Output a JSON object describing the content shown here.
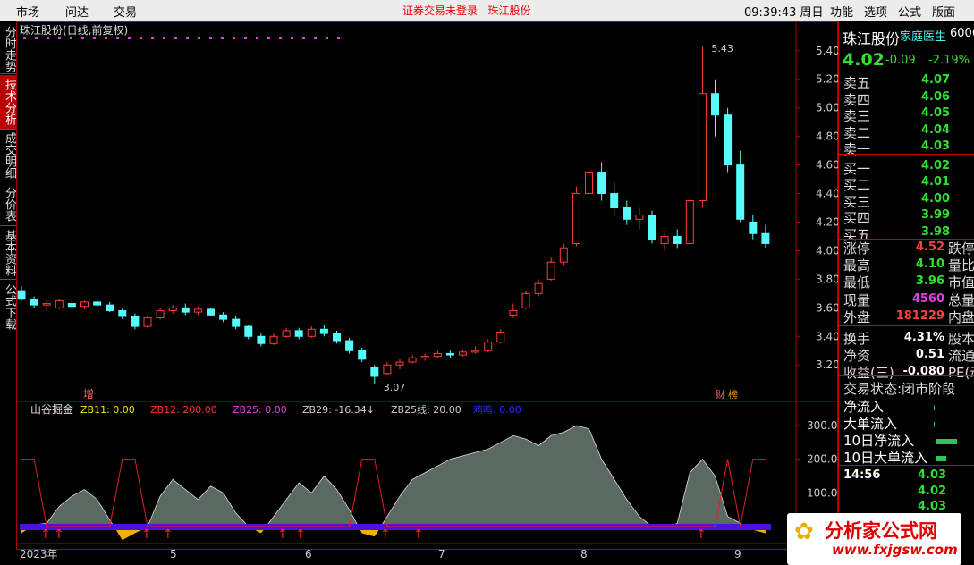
{
  "menu": {
    "left": [
      "市场",
      "问达",
      "交易"
    ],
    "center": "证券交易未登录   珠江股份",
    "clock": "09:39:43 周日",
    "right": [
      "功能",
      "选项",
      "公式",
      "版面"
    ]
  },
  "tabs": [
    "分时走势",
    "技术分析",
    "成交明细",
    "分价表",
    "基本资料",
    "公式下载"
  ],
  "price_chart": {
    "title": "珠江股份(日线,前复权)",
    "ylim": [
      3.07,
      5.43
    ],
    "yticks": [
      {
        "value": 3.2,
        "label": "3.20"
      },
      {
        "value": 3.4,
        "label": "3.40"
      },
      {
        "value": 3.6,
        "label": "3.60"
      },
      {
        "value": 3.8,
        "label": "3.80"
      },
      {
        "value": 4,
        "label": "4.00"
      },
      {
        "value": 4.2,
        "label": "4.20"
      },
      {
        "value": 4.4,
        "label": "4.40"
      },
      {
        "value": 4.6,
        "label": "4.60"
      },
      {
        "value": 4.8,
        "label": "4.80"
      },
      {
        "value": 5,
        "label": "5.00"
      },
      {
        "value": 5.2,
        "label": "5.20"
      },
      {
        "value": 5.4,
        "label": "5.40"
      }
    ],
    "candles": [
      [
        3.72,
        3.75,
        3.65,
        3.66
      ],
      [
        3.66,
        3.68,
        3.6,
        3.62
      ],
      [
        3.62,
        3.66,
        3.58,
        3.63
      ],
      [
        3.6,
        3.66,
        3.59,
        3.65
      ],
      [
        3.63,
        3.66,
        3.6,
        3.61
      ],
      [
        3.61,
        3.65,
        3.59,
        3.64
      ],
      [
        3.64,
        3.67,
        3.61,
        3.62
      ],
      [
        3.62,
        3.64,
        3.57,
        3.58
      ],
      [
        3.58,
        3.6,
        3.52,
        3.54
      ],
      [
        3.54,
        3.56,
        3.45,
        3.47
      ],
      [
        3.47,
        3.55,
        3.46,
        3.53
      ],
      [
        3.53,
        3.6,
        3.52,
        3.58
      ],
      [
        3.58,
        3.62,
        3.56,
        3.6
      ],
      [
        3.6,
        3.63,
        3.55,
        3.57
      ],
      [
        3.57,
        3.61,
        3.55,
        3.59
      ],
      [
        3.59,
        3.6,
        3.54,
        3.55
      ],
      [
        3.55,
        3.57,
        3.5,
        3.52
      ],
      [
        3.52,
        3.54,
        3.45,
        3.47
      ],
      [
        3.47,
        3.48,
        3.38,
        3.4
      ],
      [
        3.4,
        3.42,
        3.33,
        3.35
      ],
      [
        3.35,
        3.42,
        3.34,
        3.4
      ],
      [
        3.4,
        3.46,
        3.39,
        3.44
      ],
      [
        3.44,
        3.46,
        3.38,
        3.4
      ],
      [
        3.4,
        3.47,
        3.39,
        3.45
      ],
      [
        3.45,
        3.48,
        3.4,
        3.42
      ],
      [
        3.42,
        3.44,
        3.35,
        3.37
      ],
      [
        3.37,
        3.39,
        3.28,
        3.3
      ],
      [
        3.3,
        3.32,
        3.22,
        3.24
      ],
      [
        3.18,
        3.2,
        3.07,
        3.12
      ],
      [
        3.14,
        3.22,
        3.13,
        3.2
      ],
      [
        3.2,
        3.24,
        3.17,
        3.22
      ],
      [
        3.22,
        3.27,
        3.21,
        3.25
      ],
      [
        3.25,
        3.28,
        3.23,
        3.26
      ],
      [
        3.26,
        3.3,
        3.25,
        3.28
      ],
      [
        3.28,
        3.3,
        3.25,
        3.27
      ],
      [
        3.27,
        3.31,
        3.26,
        3.29
      ],
      [
        3.29,
        3.33,
        3.28,
        3.3
      ],
      [
        3.3,
        3.38,
        3.29,
        3.36
      ],
      [
        3.36,
        3.45,
        3.35,
        3.43
      ],
      [
        3.55,
        3.63,
        3.53,
        3.58
      ],
      [
        3.6,
        3.72,
        3.59,
        3.7
      ],
      [
        3.7,
        3.8,
        3.68,
        3.77
      ],
      [
        3.8,
        3.95,
        3.79,
        3.92
      ],
      [
        3.92,
        4.05,
        3.9,
        4.02
      ],
      [
        4.05,
        4.45,
        4.03,
        4.4
      ],
      [
        4.4,
        4.8,
        4.35,
        4.55
      ],
      [
        4.55,
        4.62,
        4.35,
        4.4
      ],
      [
        4.4,
        4.48,
        4.25,
        4.3
      ],
      [
        4.3,
        4.35,
        4.18,
        4.22
      ],
      [
        4.22,
        4.3,
        4.15,
        4.25
      ],
      [
        4.25,
        4.28,
        4.05,
        4.08
      ],
      [
        4.05,
        4.12,
        4,
        4.1
      ],
      [
        4.1,
        4.15,
        4.02,
        4.05
      ],
      [
        4.05,
        4.38,
        4.04,
        4.35
      ],
      [
        4.35,
        5.43,
        4.3,
        5.1
      ],
      [
        5.1,
        5.2,
        4.8,
        4.95
      ],
      [
        4.95,
        5,
        4.55,
        4.6
      ],
      [
        4.6,
        4.7,
        4.2,
        4.22
      ],
      [
        4.2,
        4.25,
        4.08,
        4.12
      ],
      [
        4.12,
        4.18,
        4.02,
        4.05
      ]
    ],
    "markers": [
      "增",
      "财",
      "榜"
    ]
  },
  "indicator": {
    "title": "山谷掘金",
    "legend": [
      "ZB11: 0.00",
      "ZB12: 200.00",
      "ZB25: 0.00",
      "ZB29: -16.34↓",
      "ZB25线: 20.00",
      "鸡鸣: 0.00"
    ],
    "ylim": [
      -40,
      320
    ],
    "yticks": [
      {
        "value": 100,
        "label": "100.0"
      },
      {
        "value": 200,
        "label": "200.0"
      },
      {
        "value": 300,
        "label": "300.0"
      }
    ],
    "area": [
      -20,
      5,
      10,
      60,
      90,
      110,
      80,
      20,
      -40,
      -20,
      0,
      90,
      140,
      110,
      80,
      120,
      100,
      40,
      0,
      -20,
      30,
      80,
      130,
      100,
      150,
      110,
      50,
      -20,
      -30,
      30,
      90,
      140,
      160,
      180,
      200,
      210,
      220,
      230,
      250,
      270,
      260,
      240,
      270,
      280,
      300,
      290,
      200,
      140,
      80,
      30,
      0,
      -10,
      10,
      160,
      200,
      150,
      30,
      10,
      -10,
      -20
    ],
    "signal": [
      200,
      200,
      0,
      0,
      0,
      0,
      0,
      0,
      200,
      200,
      0,
      0,
      0,
      0,
      0,
      0,
      0,
      0,
      0,
      0,
      0,
      0,
      0,
      0,
      0,
      0,
      0,
      200,
      200,
      0,
      0,
      0,
      0,
      0,
      0,
      0,
      0,
      0,
      0,
      0,
      0,
      0,
      0,
      0,
      0,
      0,
      0,
      0,
      0,
      0,
      0,
      0,
      0,
      0,
      0,
      0,
      200,
      0,
      200,
      200
    ]
  },
  "dates": [
    "2023年",
    "5",
    "6",
    "7",
    "8",
    "9"
  ],
  "quote": {
    "name": "珠江股份",
    "tag": "家庭医生",
    "code": "6006",
    "price": "4.02",
    "change": "-0.09",
    "pct": "-2.19%",
    "asks": [
      [
        "卖五",
        "4.07"
      ],
      [
        "卖四",
        "4.06"
      ],
      [
        "卖三",
        "4.05"
      ],
      [
        "卖二",
        "4.04"
      ],
      [
        "卖一",
        "4.03"
      ]
    ],
    "bids": [
      [
        "买一",
        "4.02"
      ],
      [
        "买二",
        "4.01"
      ],
      [
        "买三",
        "4.00"
      ],
      [
        "买四",
        "3.99"
      ],
      [
        "买五",
        "3.98"
      ]
    ],
    "stats": [
      [
        "涨停",
        "4.52",
        "跌停"
      ],
      [
        "最高",
        "4.10",
        "量比"
      ],
      [
        "最低",
        "3.96",
        "市值"
      ],
      [
        "现量",
        "4560",
        "总量"
      ],
      [
        "外盘",
        "181229",
        "内盘"
      ],
      [
        "换手",
        "4.31%",
        "股本"
      ],
      [
        "净资",
        "0.51",
        "流通"
      ],
      [
        "收益(三)",
        "-0.080",
        "PE(动)"
      ]
    ],
    "status": "交易状态:闭市阶段",
    "flows": [
      "净流入",
      "大单流入",
      "10日净流入",
      "10日大单流入"
    ],
    "ticks": {
      "time": "14:56",
      "prices": [
        "4.03",
        "4.02",
        "4.03"
      ]
    }
  },
  "watermark": {
    "name": "分析家公式网",
    "url": "www.fxjgsw.com"
  }
}
